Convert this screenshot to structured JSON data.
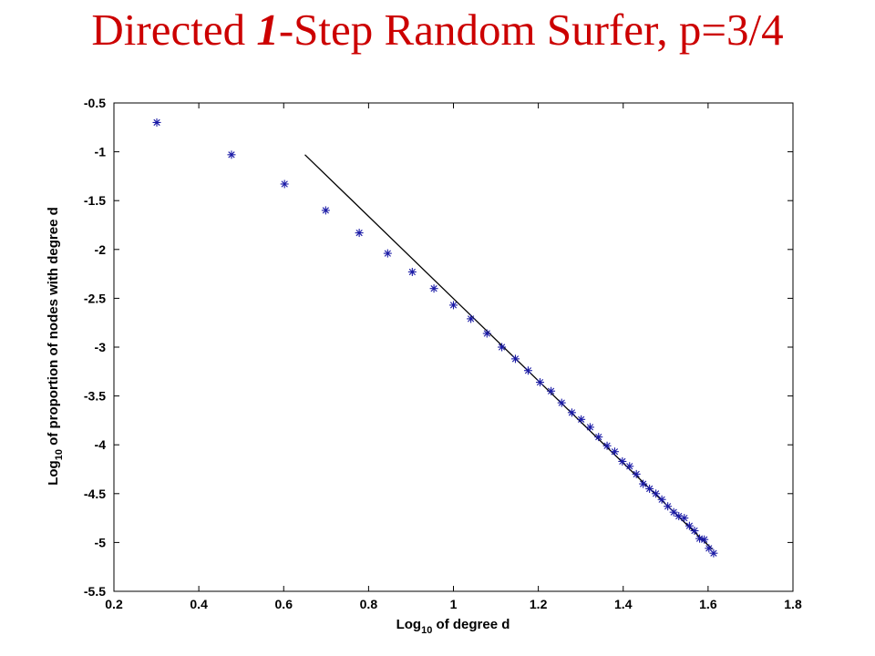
{
  "title": {
    "prefix": "Directed ",
    "emphasis": "1",
    "suffix": "-Step Random Surfer, p=3/4"
  },
  "colors": {
    "title": "#cc0000",
    "marker": "#1a1aa6",
    "line": "#000000"
  },
  "chart_data": {
    "type": "scatter",
    "xlabel": {
      "main": "Log",
      "sub": "10",
      "rest": " of degree d"
    },
    "ylabel": {
      "main": "Log",
      "sub": "10",
      "rest": " of proportion of nodes with degree d"
    },
    "xlim": [
      0.2,
      1.8
    ],
    "ylim": [
      -5.5,
      -0.5
    ],
    "xticks": [
      "0.2",
      "0.4",
      "0.6",
      "0.8",
      "1",
      "1.2",
      "1.4",
      "1.6",
      "1.8"
    ],
    "yticks": [
      "-0.5",
      "-1",
      "-1.5",
      "-2",
      "-2.5",
      "-3",
      "-3.5",
      "-4",
      "-4.5",
      "-5",
      "-5.5"
    ],
    "grid": false,
    "marker": "asterisk",
    "series": [
      {
        "points": [
          [
            0.301,
            -0.7
          ],
          [
            0.477,
            -1.03
          ],
          [
            0.602,
            -1.33
          ],
          [
            0.699,
            -1.6
          ],
          [
            0.778,
            -1.83
          ],
          [
            0.845,
            -2.04
          ],
          [
            0.903,
            -2.23
          ],
          [
            0.954,
            -2.4
          ],
          [
            1.0,
            -2.57
          ],
          [
            1.041,
            -2.71
          ],
          [
            1.079,
            -2.86
          ],
          [
            1.114,
            -3.0
          ],
          [
            1.146,
            -3.12
          ],
          [
            1.176,
            -3.24
          ],
          [
            1.204,
            -3.36
          ],
          [
            1.23,
            -3.45
          ],
          [
            1.255,
            -3.57
          ],
          [
            1.279,
            -3.67
          ],
          [
            1.301,
            -3.74
          ],
          [
            1.322,
            -3.82
          ],
          [
            1.342,
            -3.92
          ],
          [
            1.362,
            -4.01
          ],
          [
            1.38,
            -4.07
          ],
          [
            1.398,
            -4.17
          ],
          [
            1.415,
            -4.22
          ],
          [
            1.431,
            -4.3
          ],
          [
            1.447,
            -4.4
          ],
          [
            1.462,
            -4.45
          ],
          [
            1.477,
            -4.5
          ],
          [
            1.491,
            -4.56
          ],
          [
            1.505,
            -4.63
          ],
          [
            1.519,
            -4.69
          ],
          [
            1.531,
            -4.73
          ],
          [
            1.544,
            -4.75
          ],
          [
            1.556,
            -4.83
          ],
          [
            1.568,
            -4.88
          ],
          [
            1.58,
            -4.96
          ],
          [
            1.591,
            -4.97
          ],
          [
            1.602,
            -5.06
          ],
          [
            1.613,
            -5.11
          ]
        ]
      }
    ],
    "fit_line": {
      "x": [
        0.65,
        1.61
      ],
      "y": [
        -1.03,
        -5.07
      ]
    }
  }
}
